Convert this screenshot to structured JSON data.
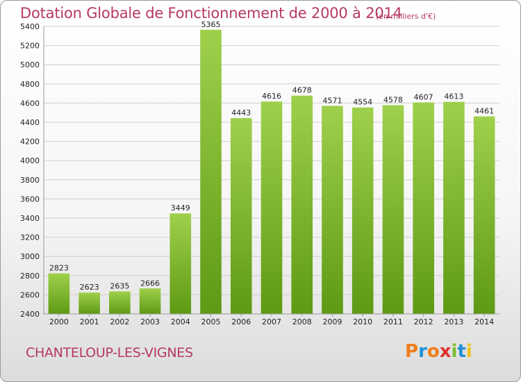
{
  "header": {
    "title": "Dotation Globale de Fonctionnement de 2000 à 2014",
    "unit_note": "(en milliers d'€)"
  },
  "commune": "CHANTELOUP-LES-VIGNES",
  "logo": {
    "text": "Proxiti",
    "letter_colors": [
      "#f07d1a",
      "#1f8fd6",
      "#f07d1a",
      "#e0332e",
      "#7dbb2f",
      "#1f8fd6",
      "#f0c21a"
    ]
  },
  "colors": {
    "title": "#b5395f",
    "bar_top": "#9fd04c",
    "bar_bottom": "#5e9a14",
    "grid": "#cfcfcf",
    "axis_text": "#222222"
  },
  "chart_data": {
    "type": "bar",
    "title": "Dotation Globale de Fonctionnement de 2000 à 2014",
    "subtitle": "(en milliers d'€)",
    "categories": [
      "2000",
      "2001",
      "2002",
      "2003",
      "2004",
      "2005",
      "2006",
      "2007",
      "2008",
      "2009",
      "2010",
      "2011",
      "2012",
      "2013",
      "2014"
    ],
    "values": [
      2823,
      2623,
      2635,
      2666,
      3449,
      5365,
      4443,
      4616,
      4678,
      4571,
      4554,
      4578,
      4607,
      4613,
      4461
    ],
    "ylim": [
      2400,
      5400
    ],
    "yticks": [
      2400,
      2600,
      2800,
      3000,
      3200,
      3400,
      3600,
      3800,
      4000,
      4200,
      4400,
      4600,
      4800,
      5000,
      5200,
      5400
    ],
    "grid": true,
    "data_labels": true
  }
}
